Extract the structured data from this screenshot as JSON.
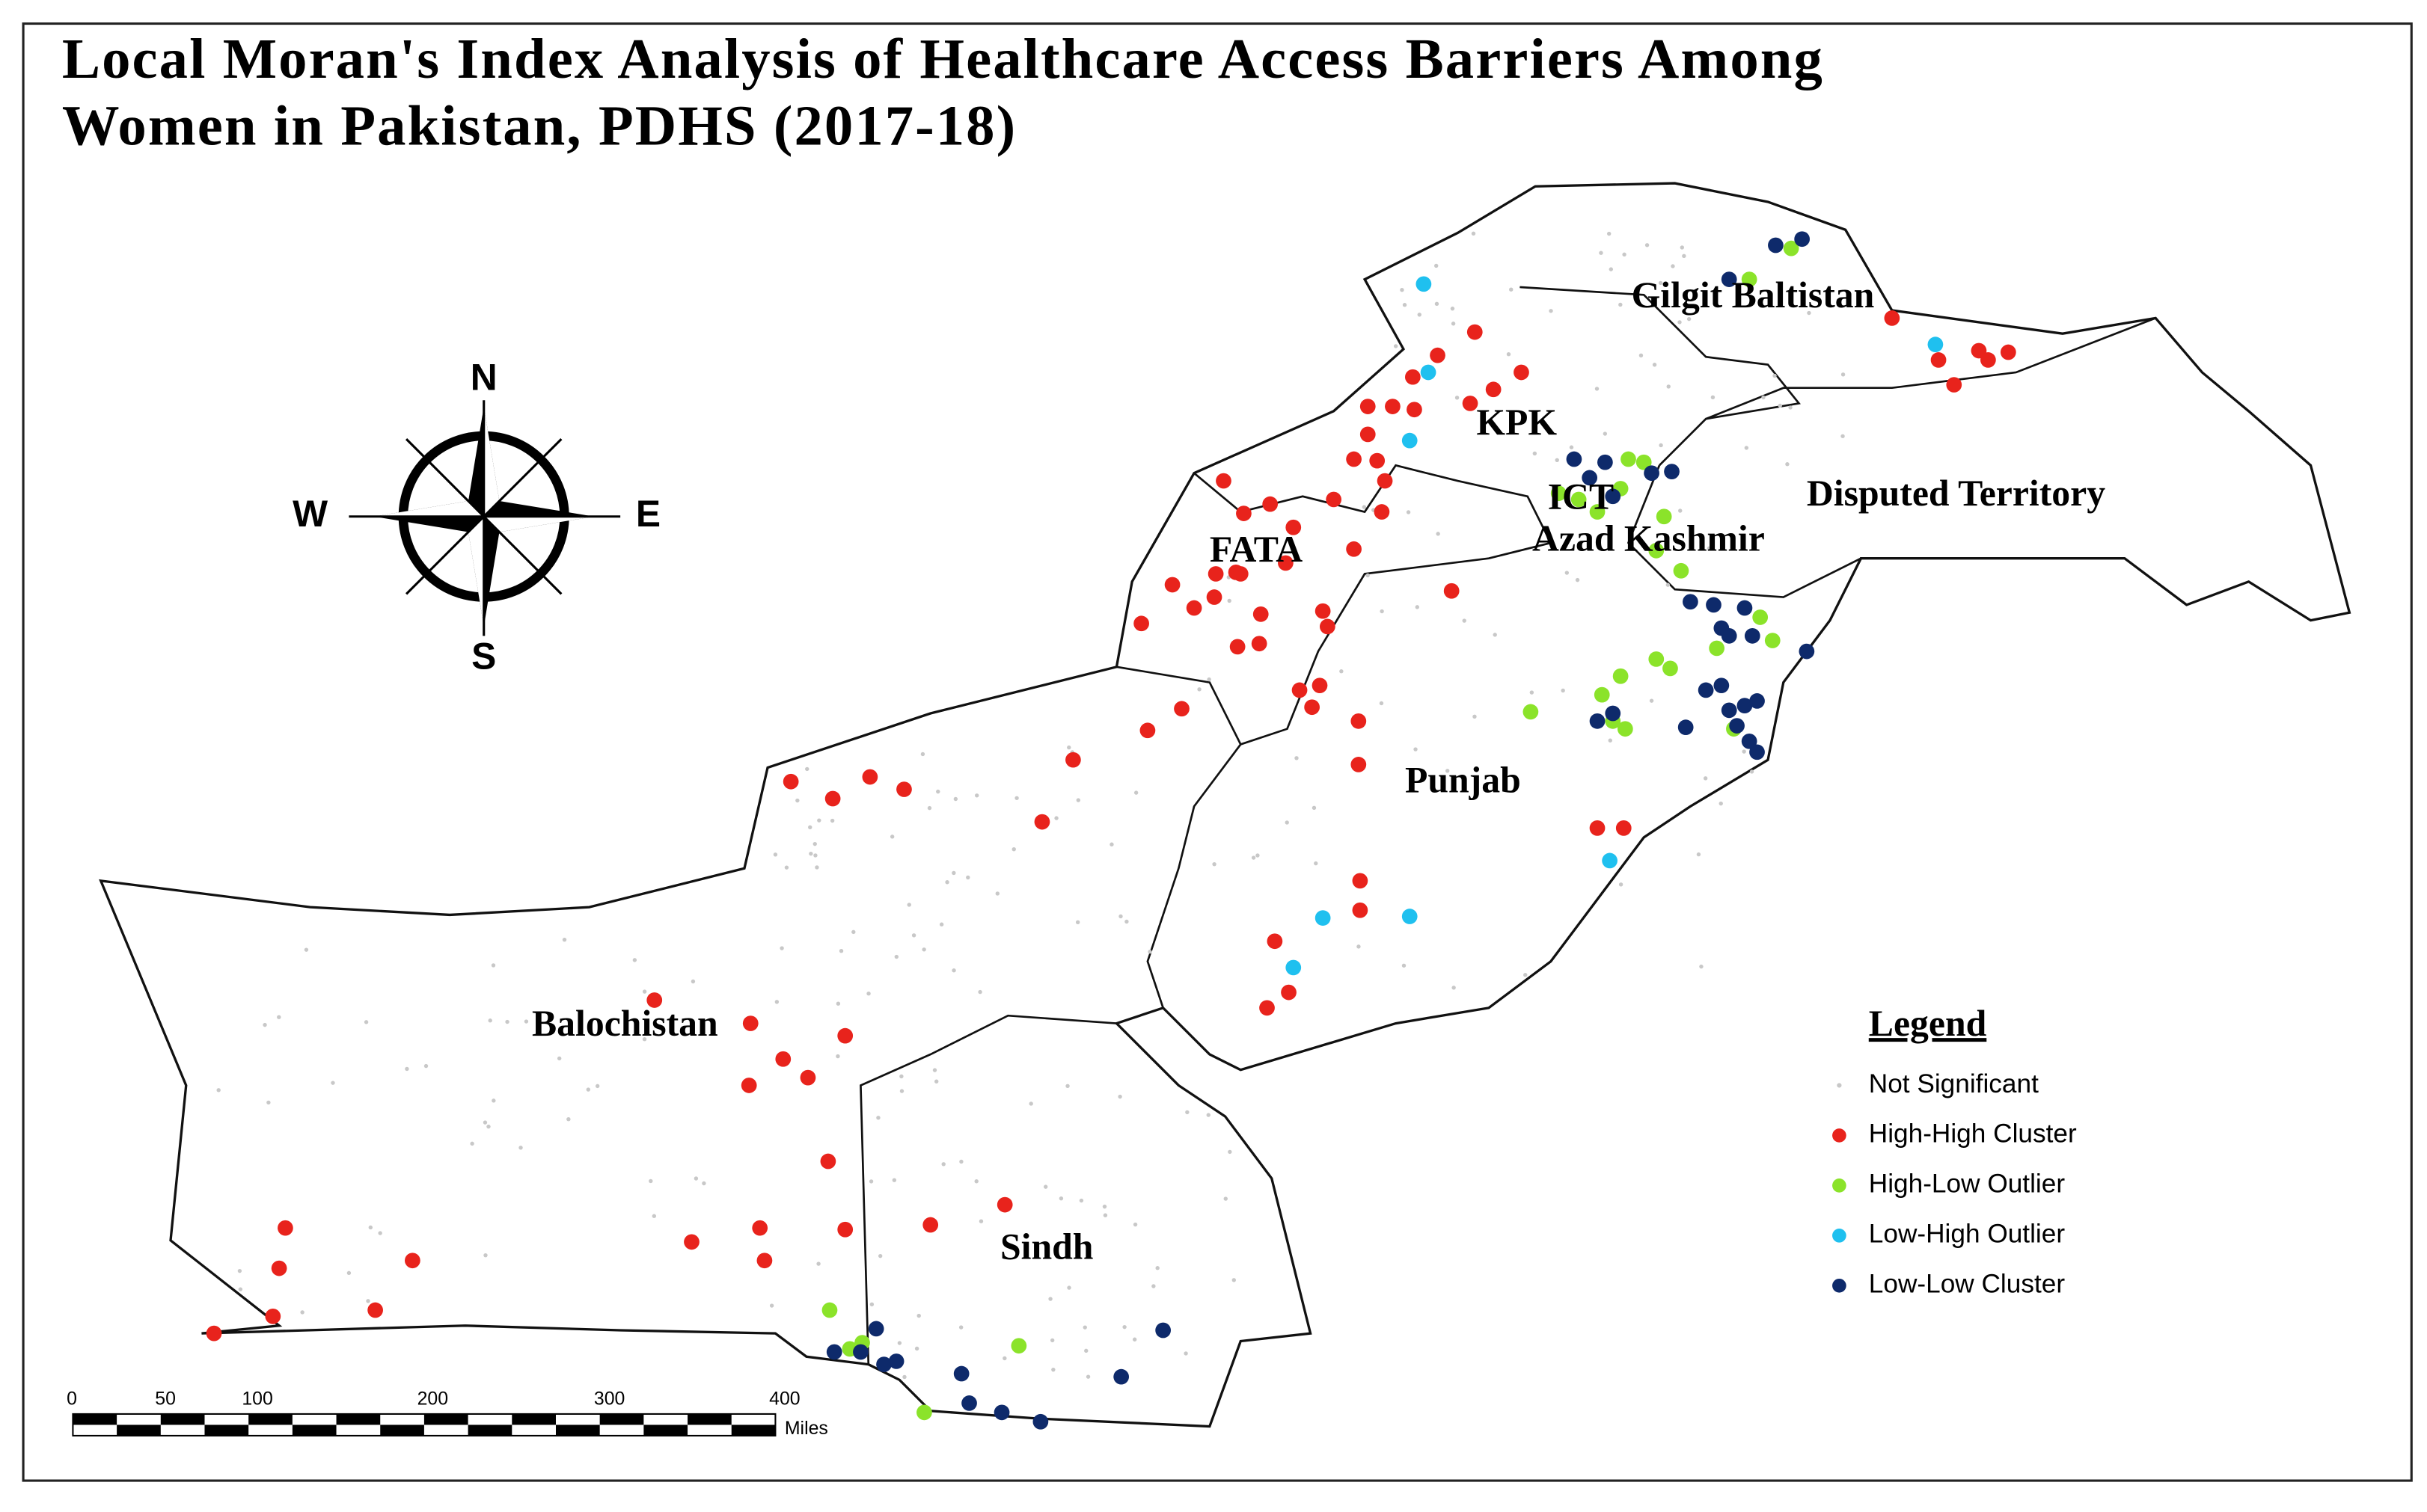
{
  "title_lines": [
    "Local Moran's Index Analysis of Healthcare Access Barriers Among",
    "Women in Pakistan, PDHS (2017-18)"
  ],
  "regions": [
    "Gilgit Baltistan",
    "KPK",
    "Disputed Territory",
    "ICT",
    "Azad Kashmir",
    "FATA",
    "Punjab",
    "Balochistan",
    "Sindh"
  ],
  "compass": {
    "north": "N",
    "west": "W",
    "east": "E",
    "south": "S"
  },
  "legend": {
    "title": "Legend",
    "items": [
      {
        "label": "Not Significant",
        "color": "#c8c8c8"
      },
      {
        "label": "High-High Cluster",
        "color": "#e8231c"
      },
      {
        "label": "High-Low Outlier",
        "color": "#8be32a"
      },
      {
        "label": "Low-High Outlier",
        "color": "#1fc0ef"
      },
      {
        "label": "Low-Low Cluster",
        "color": "#0e2a6b"
      }
    ]
  },
  "scale_bar": {
    "labels": [
      "0",
      "50",
      "100",
      "200",
      "300",
      "400"
    ],
    "unit": "Miles"
  }
}
